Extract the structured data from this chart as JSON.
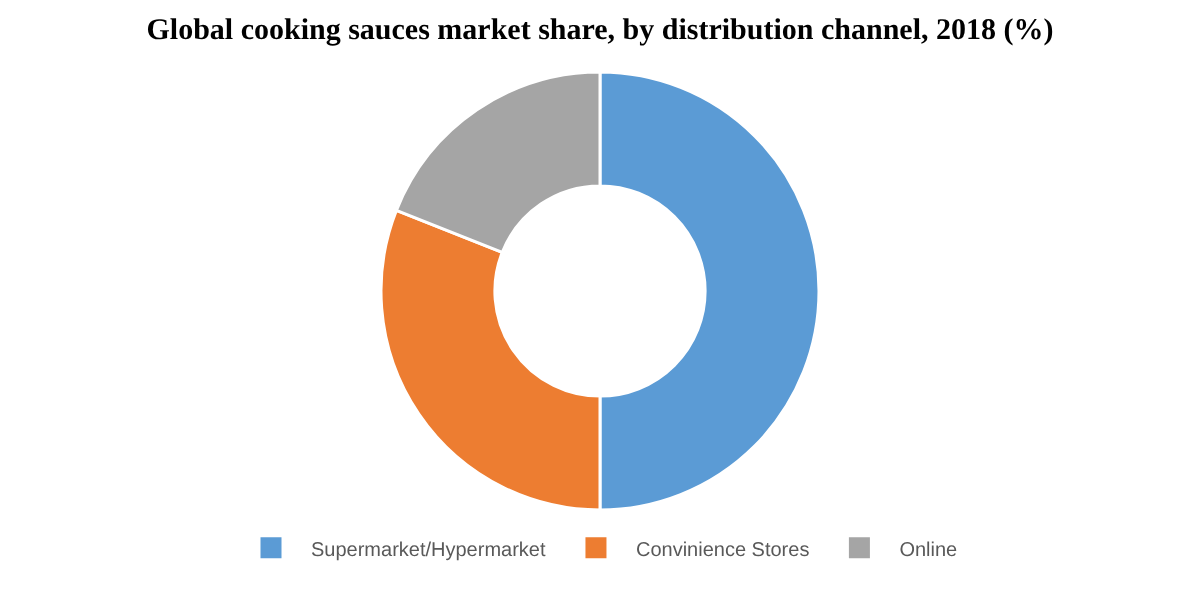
{
  "chart_data": {
    "type": "donut",
    "title": "Global cooking sauces market share, by distribution channel, 2018 (%)",
    "categories": [
      "Supermarket/Hypermarket",
      "Convinience Stores",
      "Online"
    ],
    "values": [
      50,
      31,
      19
    ],
    "colors": [
      "#5b9bd5",
      "#ed7d31",
      "#a5a5a5"
    ],
    "legend": "bottom"
  }
}
